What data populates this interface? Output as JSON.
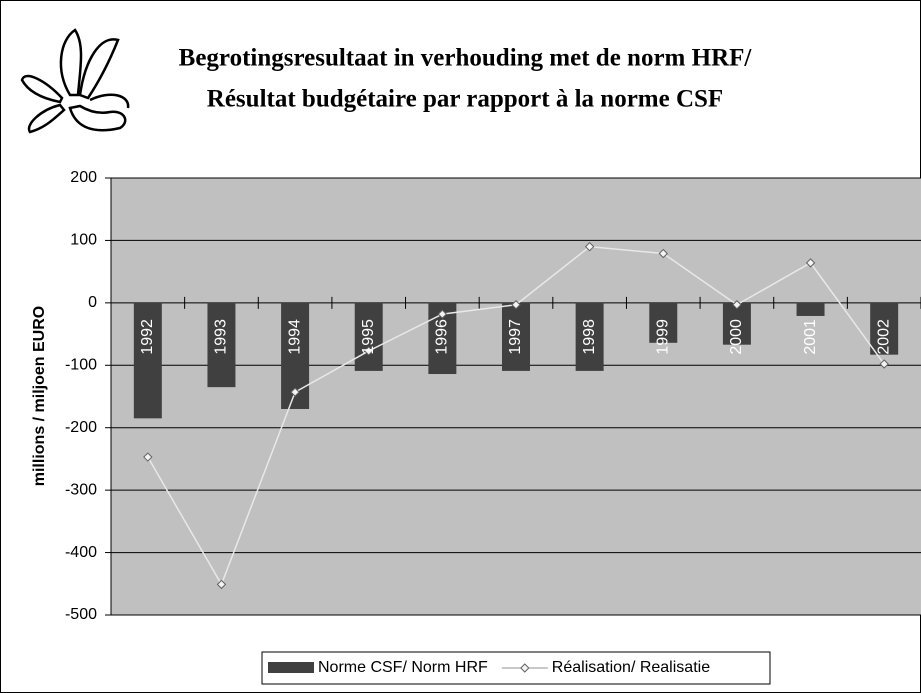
{
  "chart_data": {
    "type": "bar",
    "title": "Begrotingsresultaat in verhouding met de norm HRF/",
    "subtitle": "Résultat budgétaire par rapport à la norme CSF",
    "y_label": "millions / miljoen EURO",
    "categories": [
      "1992",
      "1993",
      "1994",
      "1995",
      "1996",
      "1997",
      "1998",
      "1999",
      "2000",
      "2001",
      "2002"
    ],
    "series": [
      {
        "name": "Norme CSF/ Norm HRF",
        "type": "bar",
        "color": "#404040",
        "values": [
          -185,
          -135,
          -170,
          -109,
          -114,
          -109,
          -109,
          -64,
          -67,
          -21,
          -83
        ]
      },
      {
        "name": "Réalisation/ Realisatie",
        "type": "line",
        "color": "#e8e8e8",
        "values": [
          -247,
          -451,
          -143,
          -77,
          -18,
          -3,
          90,
          79,
          -3,
          64,
          -98
        ]
      }
    ],
    "ylim": [
      -500,
      200
    ],
    "yticks": [
      -500,
      -400,
      -300,
      -200,
      -100,
      0,
      100,
      200
    ],
    "grid": true,
    "legend": "bottom"
  }
}
